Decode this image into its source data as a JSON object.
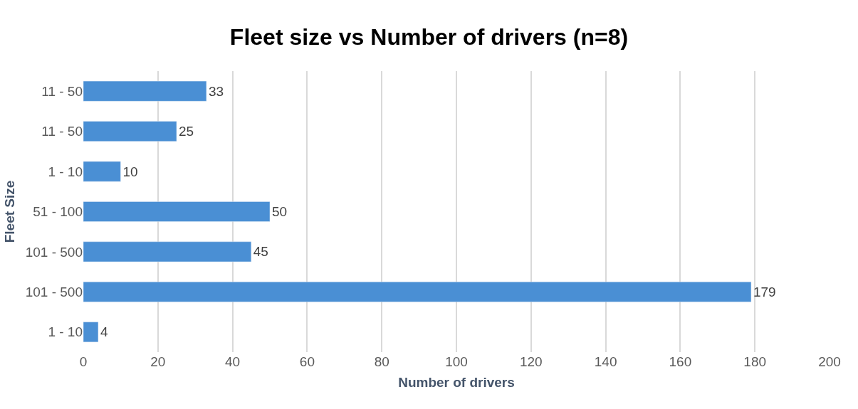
{
  "chart_data": {
    "type": "bar",
    "orientation": "horizontal",
    "title": "Fleet size vs Number of drivers (n=8)",
    "xlabel": "Number of drivers",
    "ylabel": "Fleet Size",
    "categories": [
      "11 - 50",
      "11 - 50",
      "1 - 10",
      "51 - 100",
      "101 - 500",
      "101 - 500",
      "1 - 10"
    ],
    "values": [
      33,
      25,
      10,
      50,
      45,
      179,
      4
    ],
    "color": "#4a8fd4",
    "xlim": [
      0,
      200
    ],
    "xticks": [
      0,
      20,
      40,
      60,
      80,
      100,
      120,
      140,
      160,
      180,
      200
    ],
    "grid": "x",
    "data_labels": true
  }
}
